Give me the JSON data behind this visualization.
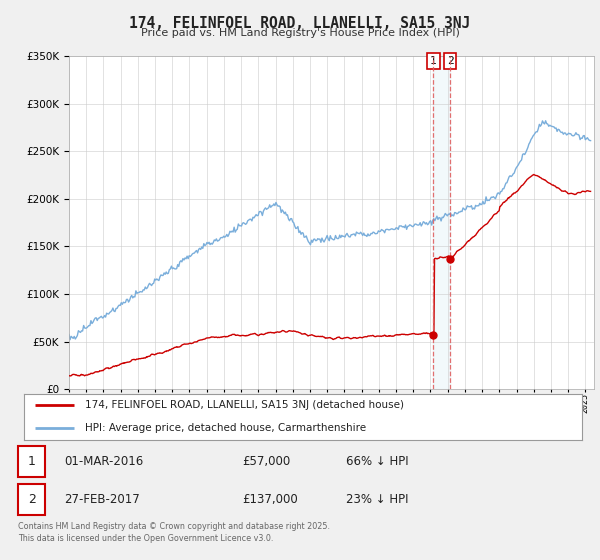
{
  "title": "174, FELINFOEL ROAD, LLANELLI, SA15 3NJ",
  "subtitle": "Price paid vs. HM Land Registry's House Price Index (HPI)",
  "legend_line1": "174, FELINFOEL ROAD, LLANELLI, SA15 3NJ (detached house)",
  "legend_line2": "HPI: Average price, detached house, Carmarthenshire",
  "transactions": [
    {
      "num": 1,
      "date": "01-MAR-2016",
      "price": "£57,000",
      "hpi": "66% ↓ HPI",
      "year": 2016.17
    },
    {
      "num": 2,
      "date": "27-FEB-2017",
      "price": "£137,000",
      "hpi": "23% ↓ HPI",
      "year": 2017.15
    }
  ],
  "footer": "Contains HM Land Registry data © Crown copyright and database right 2025.\nThis data is licensed under the Open Government Licence v3.0.",
  "line_color_red": "#cc0000",
  "line_color_blue": "#7aaedb",
  "background_color": "#f0f0f0",
  "plot_bg": "#ffffff",
  "ylim": [
    0,
    350000
  ],
  "yticks": [
    0,
    50000,
    100000,
    150000,
    200000,
    250000,
    300000,
    350000
  ],
  "xmin": 1995,
  "xmax": 2025.5
}
